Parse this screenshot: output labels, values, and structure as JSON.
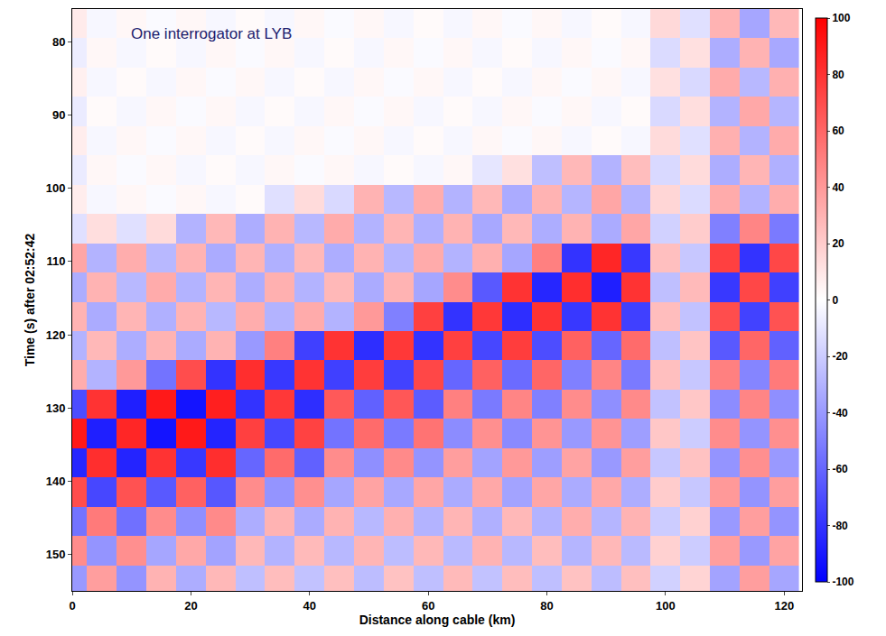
{
  "chart_data": {
    "type": "heatmap",
    "annotation": "One interrogator at LYB",
    "x_label": "Distance along cable (km)",
    "y_label": "Time (s) after 02:52:42",
    "xlim": [
      0,
      123
    ],
    "xticks": [
      0,
      20,
      40,
      60,
      80,
      100,
      120
    ],
    "ylim": [
      155,
      75.5
    ],
    "yticks": [
      80,
      90,
      100,
      110,
      120,
      130,
      140,
      150
    ],
    "colorbar_range": [
      -100,
      100
    ],
    "colorbar_ticks": [
      -100,
      -80,
      -60,
      -40,
      -20,
      0,
      20,
      40,
      60,
      80,
      100
    ],
    "colors": [
      "#0000ff",
      "#ffffff",
      "#ff0000"
    ],
    "x": [
      0,
      5,
      10,
      15,
      20,
      25,
      30,
      35,
      40,
      45,
      50,
      55,
      60,
      65,
      70,
      75,
      80,
      85,
      90,
      95,
      100,
      105,
      110,
      115,
      120
    ],
    "y": [
      77.5,
      81.5,
      85.5,
      89.5,
      93.5,
      97.5,
      101.5,
      105.5,
      109.5,
      113.5,
      117.5,
      121.5,
      125.5,
      129.5,
      133.5,
      137.5,
      141.5,
      145.5,
      149.5,
      153.5
    ],
    "z": [
      [
        8,
        -3,
        3,
        -2,
        3,
        -3,
        2,
        -3,
        3,
        -2,
        3,
        -3,
        2,
        -3,
        3,
        -2,
        3,
        -3,
        2,
        -3,
        15,
        -12,
        30,
        -35,
        28
      ],
      [
        -7,
        3,
        -3,
        2,
        -3,
        3,
        -2,
        3,
        -3,
        2,
        -3,
        3,
        -2,
        3,
        -3,
        2,
        -3,
        3,
        -2,
        3,
        -14,
        12,
        -32,
        30,
        -34
      ],
      [
        6,
        -3,
        2,
        -3,
        3,
        -2,
        3,
        -3,
        2,
        -3,
        3,
        -2,
        3,
        -3,
        2,
        -3,
        3,
        -2,
        3,
        -3,
        12,
        -15,
        33,
        -28,
        31
      ],
      [
        -8,
        2,
        -3,
        3,
        -2,
        3,
        -3,
        2,
        -3,
        3,
        -2,
        3,
        -3,
        2,
        -3,
        3,
        -2,
        3,
        -3,
        2,
        -15,
        13,
        -30,
        34,
        -29
      ],
      [
        7,
        -3,
        3,
        -2,
        3,
        -3,
        2,
        -3,
        3,
        -2,
        3,
        -3,
        2,
        -3,
        3,
        -2,
        3,
        -3,
        2,
        -3,
        14,
        -12,
        31,
        -30,
        33
      ],
      [
        -8,
        3,
        -2,
        3,
        -3,
        2,
        -3,
        3,
        -2,
        3,
        -3,
        2,
        -3,
        3,
        -10,
        12,
        -25,
        28,
        -30,
        26,
        -15,
        14,
        -32,
        29,
        -31
      ],
      [
        7,
        -3,
        3,
        -2,
        3,
        -3,
        2,
        -12,
        14,
        -15,
        30,
        -28,
        32,
        -30,
        28,
        -33,
        30,
        -29,
        35,
        -30,
        16,
        -14,
        33,
        -30,
        32
      ],
      [
        -12,
        13,
        -12,
        14,
        -30,
        28,
        -32,
        30,
        -28,
        33,
        -30,
        29,
        -31,
        30,
        -34,
        28,
        -32,
        30,
        -33,
        35,
        -18,
        20,
        -50,
        48,
        -52
      ],
      [
        35,
        -30,
        32,
        -28,
        30,
        -33,
        29,
        -31,
        28,
        -32,
        30,
        -29,
        33,
        -30,
        31,
        -35,
        50,
        -80,
        85,
        -78,
        25,
        -22,
        75,
        -80,
        72
      ],
      [
        -32,
        30,
        -28,
        33,
        -30,
        29,
        -32,
        31,
        -30,
        28,
        -33,
        30,
        -35,
        45,
        -65,
        80,
        -85,
        82,
        -88,
        80,
        -25,
        27,
        -78,
        72,
        -75
      ],
      [
        30,
        -33,
        29,
        -31,
        30,
        -28,
        32,
        -30,
        33,
        -30,
        40,
        -50,
        75,
        -80,
        78,
        -82,
        80,
        -78,
        80,
        -75,
        26,
        -24,
        70,
        -74,
        68
      ],
      [
        -30,
        28,
        -32,
        30,
        -33,
        30,
        -40,
        50,
        -75,
        80,
        -82,
        78,
        -80,
        75,
        -72,
        76,
        -70,
        62,
        -60,
        58,
        -25,
        23,
        -65,
        60,
        -62
      ],
      [
        32,
        -30,
        40,
        -55,
        70,
        -80,
        82,
        -78,
        80,
        -75,
        76,
        -74,
        72,
        -60,
        62,
        -58,
        60,
        -50,
        48,
        -52,
        25,
        -22,
        50,
        -48,
        52
      ],
      [
        -70,
        80,
        -88,
        90,
        -92,
        88,
        -80,
        78,
        -82,
        65,
        -62,
        66,
        -64,
        50,
        -52,
        48,
        -50,
        45,
        -44,
        46,
        -24,
        22,
        -45,
        48,
        -44
      ],
      [
        90,
        -88,
        85,
        -92,
        90,
        -86,
        75,
        -72,
        74,
        -55,
        58,
        -52,
        55,
        -45,
        44,
        -46,
        42,
        -40,
        42,
        -38,
        22,
        -20,
        45,
        -42,
        44
      ],
      [
        -85,
        82,
        -86,
        80,
        -78,
        82,
        -60,
        58,
        -62,
        45,
        -44,
        46,
        -42,
        38,
        -36,
        40,
        -38,
        36,
        -40,
        38,
        -22,
        24,
        -42,
        44,
        -40
      ],
      [
        70,
        -72,
        68,
        -65,
        62,
        -66,
        45,
        -42,
        44,
        -35,
        36,
        -34,
        35,
        -33,
        34,
        -36,
        35,
        -33,
        34,
        -32,
        20,
        -22,
        40,
        -42,
        38
      ],
      [
        -55,
        52,
        -56,
        45,
        -44,
        46,
        -32,
        30,
        -33,
        30,
        -28,
        31,
        -30,
        29,
        -31,
        28,
        -30,
        32,
        -29,
        30,
        -20,
        18,
        -40,
        38,
        -42
      ],
      [
        45,
        -42,
        44,
        -35,
        34,
        -36,
        28,
        -30,
        27,
        -28,
        29,
        -26,
        28,
        -27,
        30,
        -28,
        26,
        -29,
        28,
        -27,
        18,
        -20,
        38,
        -40,
        36
      ],
      [
        -40,
        38,
        -42,
        30,
        -32,
        28,
        -25,
        26,
        -24,
        25,
        -26,
        24,
        -25,
        27,
        -24,
        26,
        -25,
        24,
        -26,
        25,
        -18,
        17,
        -36,
        38,
        -35
      ]
    ]
  }
}
